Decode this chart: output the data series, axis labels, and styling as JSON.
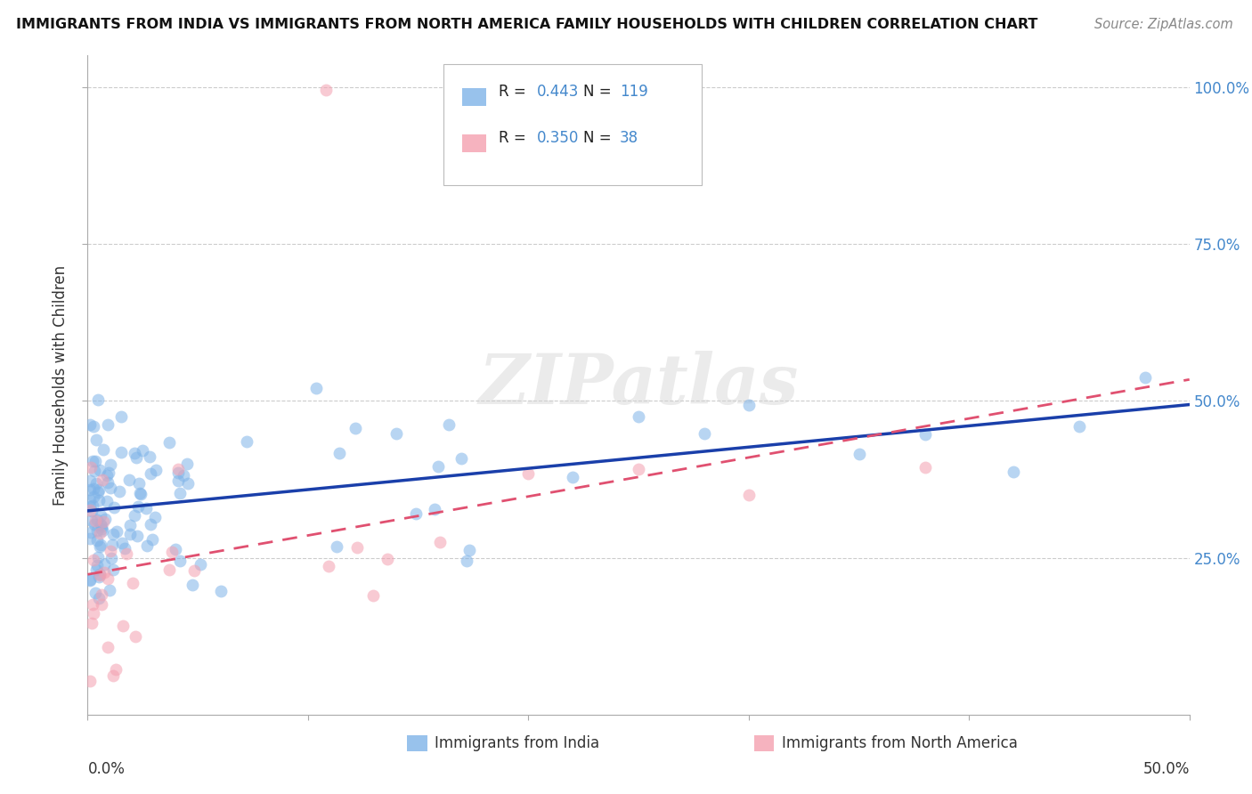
{
  "title": "IMMIGRANTS FROM INDIA VS IMMIGRANTS FROM NORTH AMERICA FAMILY HOUSEHOLDS WITH CHILDREN CORRELATION CHART",
  "source": "Source: ZipAtlas.com",
  "ylabel": "Family Households with Children",
  "y_ticks": [
    "100.0%",
    "75.0%",
    "50.0%",
    "25.0%"
  ],
  "y_tick_vals": [
    1.0,
    0.75,
    0.5,
    0.25
  ],
  "legend1_label": "Immigrants from India",
  "legend2_label": "Immigrants from North America",
  "r1": 0.443,
  "n1": 119,
  "r2": 0.35,
  "n2": 38,
  "blue_color": "#7EB3E8",
  "pink_color": "#F4A0B0",
  "trend_blue": "#1A3FAA",
  "trend_pink": "#E05070",
  "xlim": [
    0.0,
    0.5
  ],
  "ylim": [
    0.0,
    1.05
  ],
  "watermark": "ZIPatlas",
  "background_color": "#ffffff",
  "grid_color": "#cccccc"
}
